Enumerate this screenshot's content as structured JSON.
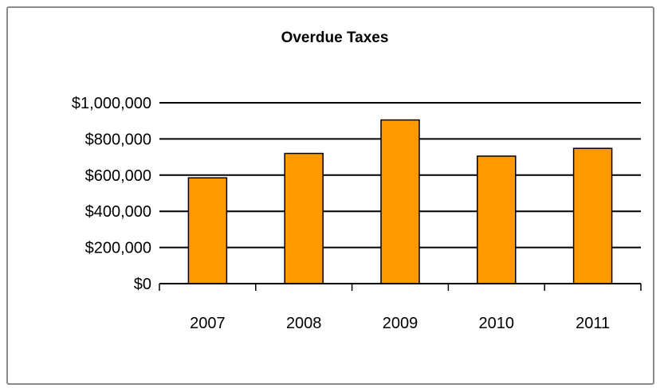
{
  "chart_data": {
    "type": "bar",
    "title": "Overdue Taxes",
    "xlabel": "",
    "ylabel": "",
    "categories": [
      "2007",
      "2008",
      "2009",
      "2010",
      "2011"
    ],
    "values": [
      585000,
      720000,
      905000,
      705000,
      748000
    ],
    "ylim": [
      0,
      1000000
    ],
    "yticks": [
      0,
      200000,
      400000,
      600000,
      800000,
      1000000
    ],
    "ytick_labels": [
      "$0",
      "$200,000",
      "$400,000",
      "$600,000",
      "$800,000",
      "$1,000,000"
    ],
    "grid": true,
    "legend": "none",
    "colors": {
      "bar_fill": "#FF9900",
      "bar_stroke": "#000000",
      "grid": "#000000",
      "frame": "#898989"
    }
  }
}
